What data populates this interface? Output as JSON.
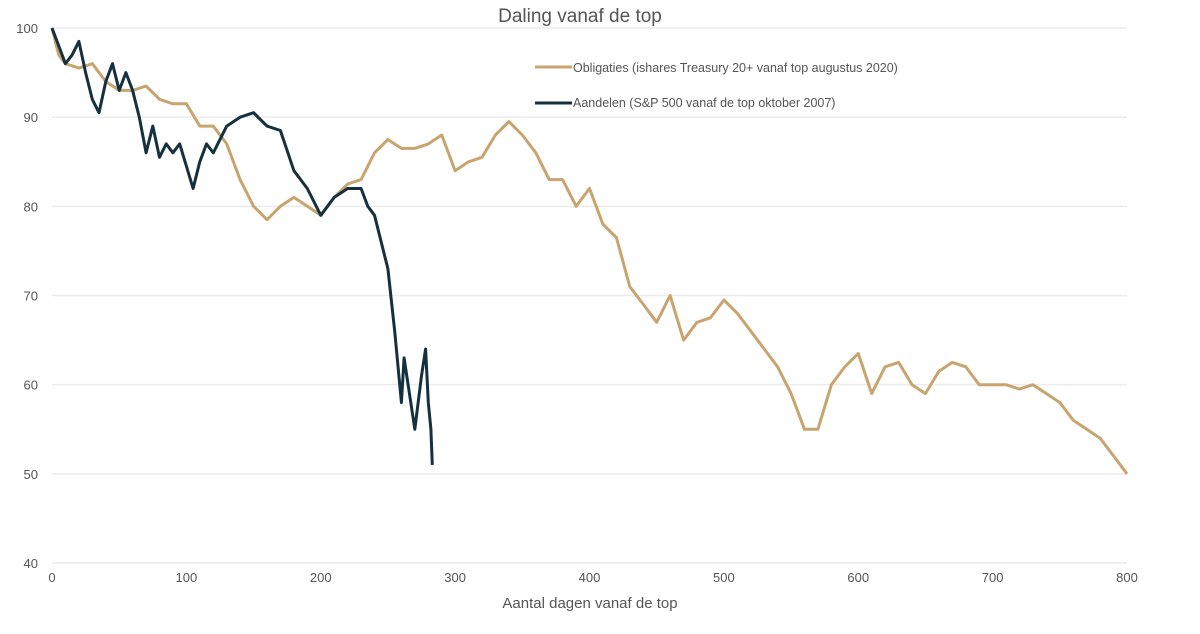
{
  "chart_data": {
    "type": "line",
    "title": "Daling vanaf de top",
    "xlabel": "Aantal dagen vanaf de top",
    "ylabel": "",
    "xlim": [
      0,
      800
    ],
    "ylim": [
      40,
      100
    ],
    "xticks": [
      0,
      100,
      200,
      300,
      400,
      500,
      600,
      700,
      800
    ],
    "yticks": [
      40,
      50,
      60,
      70,
      80,
      90,
      100
    ],
    "grid": "horizontal",
    "legend_position": "top-right",
    "series": [
      {
        "name": "Obligaties (ishares Treasury 20+ vanaf top augustus 2020)",
        "color": "#c8a46e",
        "x": [
          0,
          5,
          10,
          20,
          30,
          40,
          50,
          60,
          70,
          80,
          90,
          100,
          110,
          120,
          130,
          140,
          150,
          160,
          170,
          180,
          190,
          200,
          210,
          220,
          230,
          240,
          250,
          260,
          270,
          280,
          290,
          300,
          310,
          320,
          330,
          340,
          350,
          360,
          370,
          380,
          390,
          400,
          410,
          420,
          430,
          440,
          450,
          460,
          470,
          480,
          490,
          500,
          510,
          520,
          530,
          540,
          550,
          560,
          570,
          580,
          590,
          600,
          610,
          620,
          630,
          640,
          650,
          660,
          670,
          680,
          690,
          700,
          710,
          720,
          730,
          740,
          750,
          760,
          770,
          780,
          790,
          800
        ],
        "y": [
          100,
          97,
          96,
          95.5,
          96,
          94,
          93,
          93,
          93.5,
          92,
          91.5,
          91.5,
          89,
          89,
          87,
          83,
          80,
          78.5,
          80,
          81,
          80,
          79,
          81,
          82.5,
          83,
          86,
          87.5,
          86.5,
          86.5,
          87,
          88,
          84,
          85,
          85.5,
          88,
          89.5,
          88,
          86,
          83,
          83,
          80,
          82,
          78,
          76.5,
          71,
          69,
          67,
          70,
          65,
          67,
          67.5,
          69.5,
          68,
          66,
          64,
          62,
          59,
          55,
          55,
          60,
          62,
          63.5,
          59,
          62,
          62.5,
          60,
          59,
          61.5,
          62.5,
          62,
          60,
          60,
          60,
          59.5,
          60,
          59,
          58,
          56,
          55,
          54,
          52,
          50
        ]
      },
      {
        "name": "Aandelen (S&P 500 vanaf de top oktober 2007)",
        "color": "#15303f",
        "x": [
          0,
          5,
          10,
          15,
          20,
          25,
          30,
          35,
          40,
          45,
          50,
          55,
          60,
          65,
          70,
          75,
          80,
          85,
          90,
          95,
          100,
          105,
          110,
          115,
          120,
          130,
          140,
          150,
          160,
          170,
          180,
          190,
          200,
          205,
          210,
          220,
          230,
          235,
          240,
          245,
          250,
          255,
          260,
          262,
          265,
          270,
          275,
          278,
          280,
          282,
          283
        ],
        "y": [
          100,
          98,
          96,
          97,
          98.5,
          95,
          92,
          90.5,
          94,
          96,
          93,
          95,
          93,
          90,
          86,
          89,
          85.5,
          87,
          86,
          87,
          84.5,
          82,
          85,
          87,
          86,
          89,
          90,
          90.5,
          89,
          88.5,
          84,
          82,
          79,
          80,
          81,
          82,
          82,
          80,
          79,
          76,
          73,
          66,
          58,
          63,
          60,
          55,
          61,
          64,
          58,
          55,
          51
        ]
      }
    ]
  }
}
